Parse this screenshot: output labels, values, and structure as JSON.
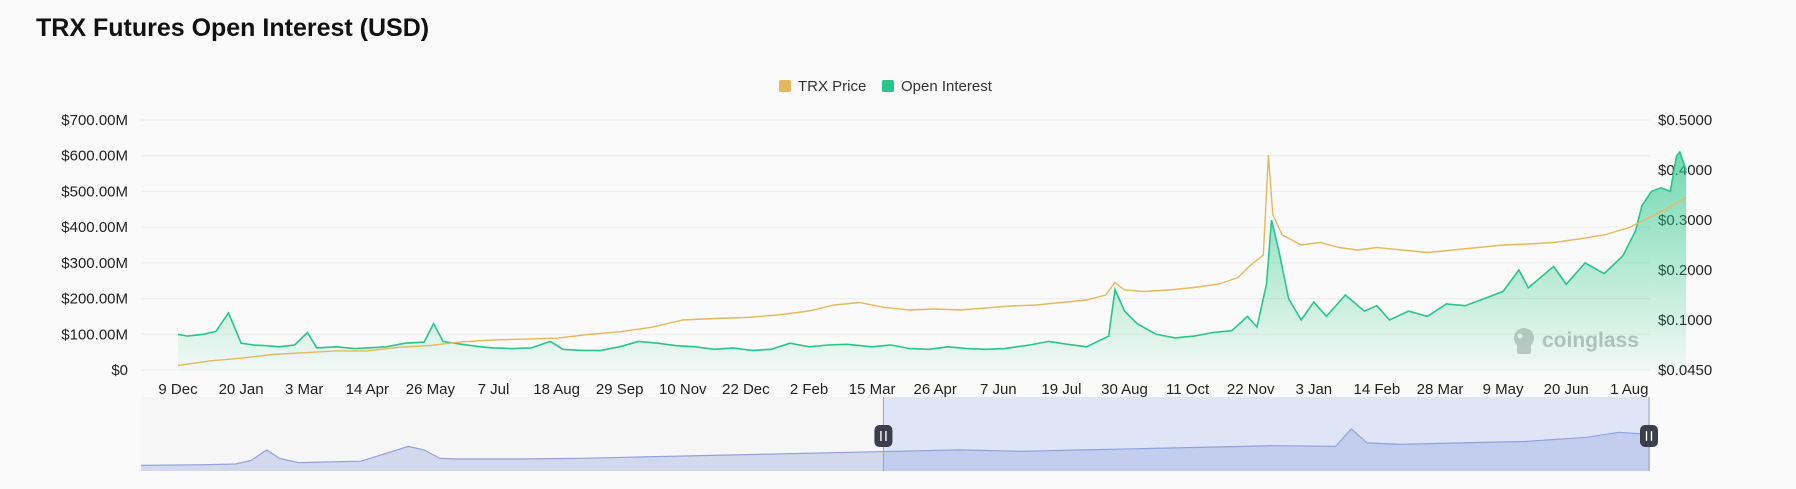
{
  "page": {
    "title": "TRX Futures Open Interest (USD)"
  },
  "colors": {
    "price": "#e6b85c",
    "open_interest": "#27c68a",
    "navigator": "#8fa3dc",
    "navigator_selected": "#dbe1f7"
  },
  "watermark": {
    "text": "coinglass",
    "icon": "coinglass-logo-icon"
  },
  "chart_data": {
    "type": "line",
    "title": "TRX Futures Open Interest (USD)",
    "legend": {
      "placement": "top-center",
      "entries": [
        "TRX Price",
        "Open Interest"
      ]
    },
    "grid": true,
    "x_ticks": [
      "9 Dec",
      "20 Jan",
      "3 Mar",
      "14 Apr",
      "26 May",
      "7 Jul",
      "18 Aug",
      "29 Sep",
      "10 Nov",
      "22 Dec",
      "2 Feb",
      "15 Mar",
      "26 Apr",
      "7 Jun",
      "19 Jul",
      "30 Aug",
      "11 Oct",
      "22 Nov",
      "3 Jan",
      "14 Feb",
      "28 Mar",
      "9 May",
      "20 Jun",
      "1 Aug"
    ],
    "y_left": {
      "ticks": [
        "$0",
        "$100.00M",
        "$200.00M",
        "$300.00M",
        "$400.00M",
        "$500.00M",
        "$600.00M",
        "$700.00M"
      ],
      "range_millions": [
        0,
        700
      ]
    },
    "y_right": {
      "ticks": [
        "$0.0450",
        "$0.1000",
        "$0.2000",
        "$0.3000",
        "$0.4000",
        "$0.5000"
      ],
      "values": [
        0.045,
        0.1,
        0.2,
        0.3,
        0.4,
        0.5
      ]
    },
    "series": [
      {
        "name": "Open Interest",
        "axis": "left",
        "unit": "millions USD",
        "points": [
          [
            0,
            100
          ],
          [
            0.15,
            95
          ],
          [
            0.4,
            100
          ],
          [
            0.6,
            108
          ],
          [
            0.8,
            160
          ],
          [
            1.0,
            75
          ],
          [
            1.2,
            70
          ],
          [
            1.4,
            68
          ],
          [
            1.6,
            65
          ],
          [
            1.85,
            70
          ],
          [
            2.05,
            105
          ],
          [
            2.2,
            62
          ],
          [
            2.5,
            65
          ],
          [
            2.8,
            60
          ],
          [
            3.0,
            62
          ],
          [
            3.3,
            65
          ],
          [
            3.6,
            75
          ],
          [
            3.9,
            78
          ],
          [
            4.05,
            130
          ],
          [
            4.2,
            80
          ],
          [
            4.5,
            72
          ],
          [
            4.8,
            65
          ],
          [
            5.0,
            62
          ],
          [
            5.3,
            60
          ],
          [
            5.6,
            62
          ],
          [
            5.9,
            80
          ],
          [
            6.1,
            58
          ],
          [
            6.4,
            55
          ],
          [
            6.7,
            55
          ],
          [
            7.0,
            65
          ],
          [
            7.3,
            80
          ],
          [
            7.6,
            75
          ],
          [
            7.9,
            68
          ],
          [
            8.2,
            65
          ],
          [
            8.5,
            58
          ],
          [
            8.8,
            62
          ],
          [
            9.1,
            55
          ],
          [
            9.4,
            58
          ],
          [
            9.7,
            75
          ],
          [
            10.0,
            65
          ],
          [
            10.3,
            70
          ],
          [
            10.6,
            72
          ],
          [
            11.0,
            65
          ],
          [
            11.3,
            70
          ],
          [
            11.6,
            60
          ],
          [
            11.9,
            58
          ],
          [
            12.2,
            65
          ],
          [
            12.5,
            60
          ],
          [
            12.8,
            58
          ],
          [
            13.1,
            60
          ],
          [
            13.5,
            70
          ],
          [
            13.8,
            80
          ],
          [
            14.1,
            72
          ],
          [
            14.4,
            65
          ],
          [
            14.75,
            95
          ],
          [
            14.85,
            225
          ],
          [
            15.0,
            165
          ],
          [
            15.2,
            130
          ],
          [
            15.5,
            100
          ],
          [
            15.8,
            90
          ],
          [
            16.1,
            95
          ],
          [
            16.4,
            105
          ],
          [
            16.7,
            110
          ],
          [
            16.95,
            150
          ],
          [
            17.1,
            120
          ],
          [
            17.25,
            240
          ],
          [
            17.33,
            420
          ],
          [
            17.45,
            330
          ],
          [
            17.6,
            200
          ],
          [
            17.8,
            140
          ],
          [
            18.0,
            190
          ],
          [
            18.2,
            150
          ],
          [
            18.5,
            210
          ],
          [
            18.8,
            165
          ],
          [
            19.0,
            180
          ],
          [
            19.2,
            140
          ],
          [
            19.5,
            165
          ],
          [
            19.8,
            150
          ],
          [
            20.1,
            185
          ],
          [
            20.4,
            180
          ],
          [
            20.7,
            200
          ],
          [
            21.0,
            220
          ],
          [
            21.25,
            280
          ],
          [
            21.4,
            230
          ],
          [
            21.6,
            260
          ],
          [
            21.8,
            290
          ],
          [
            22.0,
            240
          ],
          [
            22.3,
            300
          ],
          [
            22.6,
            270
          ],
          [
            22.9,
            320
          ],
          [
            23.1,
            390
          ],
          [
            23.2,
            460
          ],
          [
            23.35,
            500
          ],
          [
            23.5,
            510
          ],
          [
            23.65,
            500
          ],
          [
            23.75,
            600
          ],
          [
            23.8,
            610
          ],
          [
            23.9,
            560
          ]
        ]
      },
      {
        "name": "TRX Price",
        "axis": "right",
        "unit": "USD",
        "points": [
          [
            0,
            0.05
          ],
          [
            0.5,
            0.055
          ],
          [
            1.0,
            0.058
          ],
          [
            1.5,
            0.062
          ],
          [
            2.0,
            0.064
          ],
          [
            2.5,
            0.066
          ],
          [
            3.0,
            0.066
          ],
          [
            3.5,
            0.07
          ],
          [
            4.0,
            0.072
          ],
          [
            4.5,
            0.076
          ],
          [
            5.0,
            0.078
          ],
          [
            5.5,
            0.079
          ],
          [
            6.0,
            0.08
          ],
          [
            6.5,
            0.084
          ],
          [
            7.0,
            0.087
          ],
          [
            7.5,
            0.092
          ],
          [
            8.0,
            0.1
          ],
          [
            8.5,
            0.103
          ],
          [
            9.0,
            0.105
          ],
          [
            9.5,
            0.11
          ],
          [
            10.0,
            0.118
          ],
          [
            10.4,
            0.13
          ],
          [
            10.8,
            0.135
          ],
          [
            11.2,
            0.125
          ],
          [
            11.6,
            0.12
          ],
          [
            12.0,
            0.122
          ],
          [
            12.4,
            0.12
          ],
          [
            12.8,
            0.124
          ],
          [
            13.2,
            0.128
          ],
          [
            13.6,
            0.13
          ],
          [
            14.0,
            0.135
          ],
          [
            14.4,
            0.14
          ],
          [
            14.7,
            0.15
          ],
          [
            14.85,
            0.175
          ],
          [
            15.0,
            0.16
          ],
          [
            15.3,
            0.157
          ],
          [
            15.7,
            0.16
          ],
          [
            16.1,
            0.165
          ],
          [
            16.5,
            0.172
          ],
          [
            16.8,
            0.185
          ],
          [
            17.0,
            0.21
          ],
          [
            17.2,
            0.23
          ],
          [
            17.28,
            0.43
          ],
          [
            17.35,
            0.31
          ],
          [
            17.5,
            0.27
          ],
          [
            17.8,
            0.25
          ],
          [
            18.1,
            0.255
          ],
          [
            18.4,
            0.245
          ],
          [
            18.7,
            0.24
          ],
          [
            19.0,
            0.245
          ],
          [
            19.4,
            0.24
          ],
          [
            19.8,
            0.235
          ],
          [
            20.2,
            0.24
          ],
          [
            20.6,
            0.245
          ],
          [
            21.0,
            0.25
          ],
          [
            21.4,
            0.252
          ],
          [
            21.8,
            0.255
          ],
          [
            22.2,
            0.262
          ],
          [
            22.6,
            0.27
          ],
          [
            23.0,
            0.285
          ],
          [
            23.4,
            0.31
          ],
          [
            23.7,
            0.33
          ],
          [
            23.9,
            0.345
          ]
        ]
      }
    ],
    "navigator": {
      "selection_range": [
        0.492,
        1.0
      ],
      "points": [
        [
          0,
          0.08
        ],
        [
          0.2,
          0.09
        ],
        [
          0.3,
          0.1
        ],
        [
          0.35,
          0.15
        ],
        [
          0.4,
          0.3
        ],
        [
          0.44,
          0.18
        ],
        [
          0.5,
          0.12
        ],
        [
          0.6,
          0.13
        ],
        [
          0.7,
          0.14
        ],
        [
          0.8,
          0.28
        ],
        [
          0.85,
          0.35
        ],
        [
          0.9,
          0.3
        ],
        [
          0.95,
          0.18
        ],
        [
          1.0,
          0.17
        ],
        [
          1.2,
          0.17
        ],
        [
          1.4,
          0.18
        ],
        [
          1.6,
          0.2
        ],
        [
          1.8,
          0.22
        ],
        [
          2.0,
          0.24
        ],
        [
          2.2,
          0.26
        ],
        [
          2.4,
          0.28
        ],
        [
          2.6,
          0.3
        ],
        [
          2.8,
          0.28
        ],
        [
          3.0,
          0.3
        ],
        [
          3.2,
          0.32
        ],
        [
          3.4,
          0.34
        ],
        [
          3.6,
          0.36
        ],
        [
          3.8,
          0.35
        ],
        [
          3.85,
          0.6
        ],
        [
          3.9,
          0.4
        ],
        [
          4.0,
          0.38
        ],
        [
          4.2,
          0.4
        ],
        [
          4.4,
          0.42
        ],
        [
          4.6,
          0.48
        ],
        [
          4.7,
          0.55
        ],
        [
          4.8,
          0.52
        ]
      ]
    }
  }
}
